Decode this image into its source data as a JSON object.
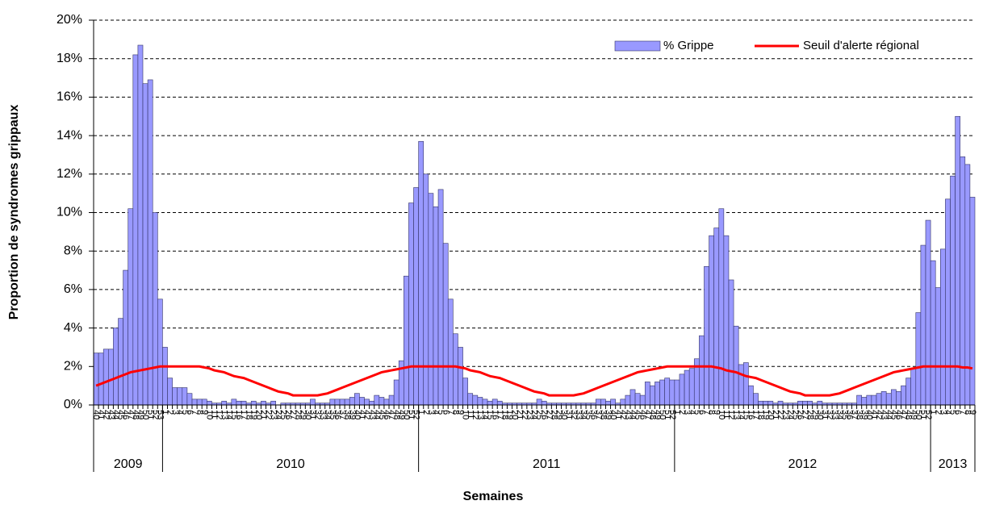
{
  "chart_data": {
    "type": "bar_line",
    "y_label": "Proportion de syndromes grippaux",
    "x_label": "Semaines",
    "ylim": [
      0,
      20
    ],
    "yticks": [
      {
        "value": 0,
        "label": "0%"
      },
      {
        "value": 2,
        "label": "2%"
      },
      {
        "value": 4,
        "label": "4%"
      },
      {
        "value": 6,
        "label": "6%"
      },
      {
        "value": 8,
        "label": "8%"
      },
      {
        "value": 10,
        "label": "10%"
      },
      {
        "value": 12,
        "label": "12%"
      },
      {
        "value": 14,
        "label": "14%"
      },
      {
        "value": 16,
        "label": "16%"
      },
      {
        "value": 18,
        "label": "18%"
      },
      {
        "value": 20,
        "label": "20%"
      }
    ],
    "grid": true,
    "legend": "top-right",
    "x_groups": [
      "2009",
      "2010",
      "2011",
      "2012",
      "2013"
    ],
    "categories": [
      "40",
      "41",
      "42",
      "43",
      "44",
      "45",
      "46",
      "47",
      "48",
      "49",
      "50",
      "51",
      "52",
      "53",
      "1",
      "2",
      "3",
      "4",
      "5",
      "6",
      "7",
      "8",
      "9",
      "10",
      "11",
      "12",
      "13",
      "14",
      "15",
      "16",
      "17",
      "18",
      "19",
      "20",
      "21",
      "22",
      "23",
      "24",
      "25",
      "26",
      "27",
      "28",
      "29",
      "30",
      "31",
      "32",
      "33",
      "34",
      "35",
      "36",
      "37",
      "38",
      "39",
      "40",
      "41",
      "42",
      "43",
      "44",
      "45",
      "46",
      "47",
      "48",
      "49",
      "50",
      "51",
      "52",
      "1",
      "2",
      "3",
      "4",
      "5",
      "6",
      "7",
      "8",
      "9",
      "10",
      "11",
      "12",
      "13",
      "14",
      "15",
      "16",
      "17",
      "18",
      "19",
      "20",
      "21",
      "22",
      "23",
      "24",
      "25",
      "26",
      "27",
      "28",
      "29",
      "30",
      "31",
      "32",
      "33",
      "34",
      "35",
      "36",
      "37",
      "38",
      "39",
      "40",
      "41",
      "42",
      "43",
      "44",
      "45",
      "46",
      "47",
      "48",
      "49",
      "50",
      "51",
      "52",
      "1",
      "2",
      "3",
      "4",
      "5",
      "6",
      "7",
      "8",
      "9",
      "10",
      "11",
      "12",
      "13",
      "14",
      "15",
      "16",
      "17",
      "18",
      "19",
      "20",
      "21",
      "22",
      "23",
      "24",
      "25",
      "26",
      "27",
      "28",
      "29",
      "30",
      "31",
      "32",
      "33",
      "34",
      "35",
      "36",
      "37",
      "38",
      "39",
      "40",
      "41",
      "42",
      "43",
      "44",
      "45",
      "46",
      "47",
      "48",
      "49",
      "50",
      "51",
      "52",
      "1",
      "2",
      "3",
      "4",
      "5",
      "6",
      "7",
      "8",
      "9"
    ],
    "series": [
      {
        "name": "% Grippe",
        "kind": "bar",
        "color": "#9999ff",
        "values": [
          2.7,
          2.7,
          2.9,
          2.9,
          4.0,
          4.5,
          7.0,
          10.2,
          18.2,
          18.7,
          16.7,
          16.9,
          10.0,
          5.5,
          3.0,
          1.4,
          0.9,
          0.9,
          0.9,
          0.6,
          0.3,
          0.3,
          0.3,
          0.2,
          0.1,
          0.1,
          0.2,
          0.1,
          0.3,
          0.2,
          0.2,
          0.1,
          0.2,
          0.1,
          0.2,
          0.1,
          0.2,
          0.0,
          0.1,
          0.1,
          0.1,
          0.1,
          0.1,
          0.1,
          0.3,
          0.1,
          0.1,
          0.1,
          0.3,
          0.3,
          0.3,
          0.3,
          0.4,
          0.6,
          0.4,
          0.3,
          0.2,
          0.5,
          0.4,
          0.3,
          0.5,
          1.3,
          2.3,
          6.7,
          10.5,
          11.3,
          13.7,
          12.0,
          11.0,
          10.3,
          11.2,
          8.4,
          5.5,
          3.7,
          3.0,
          1.4,
          0.6,
          0.5,
          0.4,
          0.3,
          0.2,
          0.3,
          0.2,
          0.1,
          0.1,
          0.1,
          0.1,
          0.1,
          0.1,
          0.1,
          0.3,
          0.2,
          0.1,
          0.1,
          0.1,
          0.1,
          0.1,
          0.1,
          0.1,
          0.1,
          0.1,
          0.1,
          0.3,
          0.3,
          0.2,
          0.3,
          0.1,
          0.3,
          0.5,
          0.8,
          0.6,
          0.5,
          1.2,
          1.0,
          1.2,
          1.3,
          1.4,
          1.3,
          1.3,
          1.6,
          1.8,
          1.9,
          2.4,
          3.6,
          7.2,
          8.8,
          9.2,
          10.2,
          8.8,
          6.5,
          4.1,
          2.1,
          2.2,
          1.0,
          0.6,
          0.2,
          0.2,
          0.2,
          0.1,
          0.2,
          0.1,
          0.1,
          0.1,
          0.2,
          0.2,
          0.2,
          0.1,
          0.2,
          0.1,
          0.1,
          0.1,
          0.1,
          0.1,
          0.1,
          0.1,
          0.5,
          0.4,
          0.5,
          0.5,
          0.6,
          0.7,
          0.6,
          0.8,
          0.7,
          1.0,
          1.4,
          1.9,
          4.8,
          8.3,
          9.6,
          7.5,
          6.1,
          8.1,
          10.7,
          11.9,
          15.0,
          12.9,
          12.5,
          10.8
        ]
      },
      {
        "name": "Seuil d'alerte régional",
        "kind": "line",
        "color": "#ff0000",
        "values": [
          1.0,
          1.1,
          1.2,
          1.3,
          1.4,
          1.5,
          1.6,
          1.7,
          1.75,
          1.8,
          1.85,
          1.9,
          1.95,
          2.0,
          2.0,
          2.0,
          2.0,
          2.0,
          2.0,
          2.0,
          2.0,
          2.0,
          1.95,
          1.9,
          1.8,
          1.75,
          1.7,
          1.6,
          1.5,
          1.45,
          1.4,
          1.3,
          1.2,
          1.1,
          1.0,
          0.9,
          0.8,
          0.7,
          0.65,
          0.6,
          0.5,
          0.5,
          0.5,
          0.5,
          0.5,
          0.5,
          0.55,
          0.6,
          0.7,
          0.8,
          0.9,
          1.0,
          1.1,
          1.2,
          1.3,
          1.4,
          1.5,
          1.6,
          1.7,
          1.75,
          1.8,
          1.85,
          1.9,
          1.95,
          2.0,
          2.0,
          2.0,
          2.0,
          2.0,
          2.0,
          2.0,
          2.0,
          2.0,
          2.0,
          1.95,
          1.9,
          1.8,
          1.75,
          1.7,
          1.6,
          1.5,
          1.45,
          1.4,
          1.3,
          1.2,
          1.1,
          1.0,
          0.9,
          0.8,
          0.7,
          0.65,
          0.6,
          0.5,
          0.5,
          0.5,
          0.5,
          0.5,
          0.5,
          0.55,
          0.6,
          0.7,
          0.8,
          0.9,
          1.0,
          1.1,
          1.2,
          1.3,
          1.4,
          1.5,
          1.6,
          1.7,
          1.75,
          1.8,
          1.85,
          1.9,
          1.95,
          2.0,
          2.0,
          2.0,
          2.0,
          2.0,
          2.0,
          2.0,
          2.0,
          2.0,
          2.0,
          1.95,
          1.9,
          1.8,
          1.75,
          1.7,
          1.6,
          1.5,
          1.45,
          1.4,
          1.3,
          1.2,
          1.1,
          1.0,
          0.9,
          0.8,
          0.7,
          0.65,
          0.6,
          0.5,
          0.5,
          0.5,
          0.5,
          0.5,
          0.5,
          0.55,
          0.6,
          0.7,
          0.8,
          0.9,
          1.0,
          1.1,
          1.2,
          1.3,
          1.4,
          1.5,
          1.6,
          1.7,
          1.75,
          1.8,
          1.85,
          1.9,
          1.95,
          2.0,
          2.0,
          2.0,
          2.0,
          2.0,
          2.0,
          2.0,
          2.0,
          1.95,
          1.95,
          1.9
        ]
      }
    ]
  }
}
